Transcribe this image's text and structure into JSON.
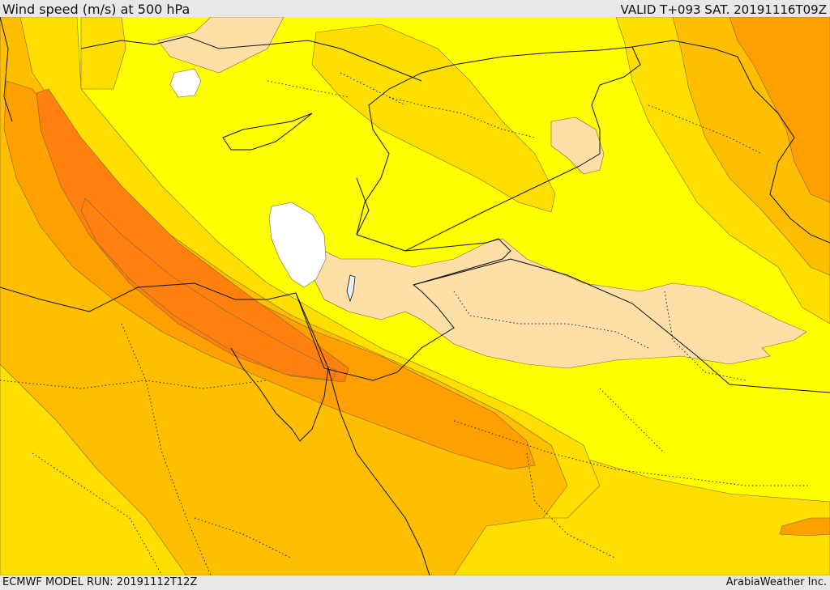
{
  "header": {
    "title": "Wind speed (m/s) at 500 hPa",
    "valid_time": "VALID T+093 SAT. 20191116T09Z"
  },
  "footer": {
    "model_run": "ECMWF MODEL RUN: 20191112T12Z",
    "credit": "ArabiaWeather Inc."
  },
  "map": {
    "variable": "wind speed",
    "units": "m/s",
    "level_hpa": 500,
    "shading_colors": [
      "#ffffff",
      "#ffdfa8",
      "#ffff00",
      "#ffdf00",
      "#ffbf00",
      "#ff9f00",
      "#ff7f0f"
    ],
    "boundary_color": "#000000",
    "contour_color": "#6b5a3a"
  }
}
